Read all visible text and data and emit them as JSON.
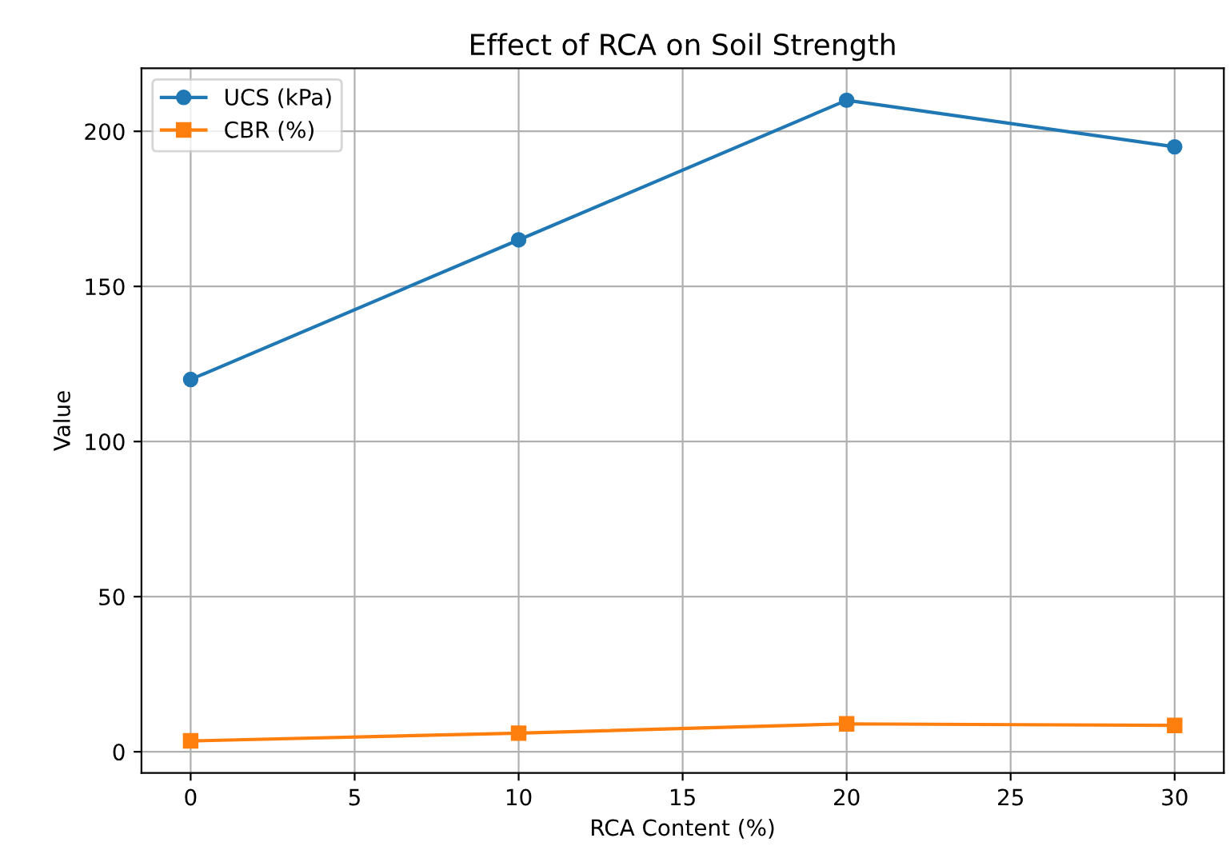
{
  "chart_data": {
    "type": "line",
    "title": "Effect of RCA on Soil Strength",
    "xlabel": "RCA Content (%)",
    "ylabel": "Value",
    "x": [
      0,
      10,
      20,
      30
    ],
    "series": [
      {
        "name": "UCS (kPa)",
        "color": "#1f77b4",
        "values": [
          120,
          165,
          210,
          195
        ],
        "marker": "circle"
      },
      {
        "name": "CBR (%)",
        "color": "#ff7f0e",
        "values": [
          3.5,
          6,
          9,
          8.5
        ],
        "marker": "square"
      }
    ],
    "xlim": [
      -1.5,
      31.5
    ],
    "xticks": [
      0,
      5,
      10,
      15,
      20,
      25,
      30
    ],
    "ylim": [
      -6.8,
      220.3
    ],
    "yticks": [
      0,
      50,
      100,
      150,
      200
    ],
    "grid": true,
    "legend": "top left",
    "line_style": "solid"
  }
}
